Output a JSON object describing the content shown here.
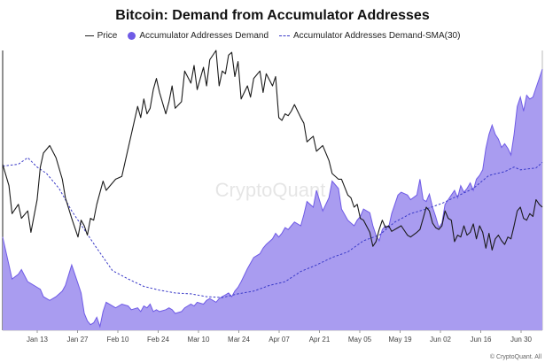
{
  "chart_data": {
    "type": "area",
    "title": "Bitcoin: Demand from Accumulator Addresses",
    "xlabel": "",
    "ylabel": "",
    "legend_position": "top",
    "grid": false,
    "watermark": "CryptoQuant",
    "footer": "© CryptoQuant. All",
    "x_tick_labels": [
      "Jan 13",
      "Jan 27",
      "Feb 10",
      "Feb 24",
      "Mar 10",
      "Mar 24",
      "Apr 07",
      "Apr 21",
      "May 05",
      "May 19",
      "Jun 02",
      "Jun 16",
      "Jun 30"
    ],
    "colors": {
      "price": "#1a1a1a",
      "demand_fill": "#a99cf0",
      "demand_line": "#6f5be6",
      "sma": "#3a3ac8"
    },
    "series": [
      {
        "name": "Price",
        "type": "line",
        "values": [
          [
            0,
            178
          ],
          [
            2,
            155
          ],
          [
            3,
            125
          ],
          [
            5,
            135
          ],
          [
            6,
            120
          ],
          [
            8,
            128
          ],
          [
            9,
            105
          ],
          [
            11,
            140
          ],
          [
            12,
            175
          ],
          [
            13,
            190
          ],
          [
            15,
            198
          ],
          [
            17,
            185
          ],
          [
            19,
            162
          ],
          [
            20,
            142
          ],
          [
            22,
            120
          ],
          [
            24,
            100
          ],
          [
            25,
            118
          ],
          [
            26,
            112
          ],
          [
            27,
            102
          ],
          [
            28,
            120
          ],
          [
            29,
            118
          ],
          [
            30,
            135
          ],
          [
            32,
            160
          ],
          [
            33,
            150
          ],
          [
            35,
            158
          ],
          [
            36,
            162
          ],
          [
            38,
            165
          ],
          [
            40,
            195
          ],
          [
            41,
            210
          ],
          [
            43,
            240
          ],
          [
            44,
            228
          ],
          [
            45,
            248
          ],
          [
            46,
            232
          ],
          [
            47,
            238
          ],
          [
            48,
            258
          ],
          [
            49,
            270
          ],
          [
            50,
            255
          ],
          [
            52,
            232
          ],
          [
            53,
            245
          ],
          [
            54,
            262
          ],
          [
            55,
            238
          ],
          [
            57,
            245
          ],
          [
            58,
            278
          ],
          [
            60,
            265
          ],
          [
            61,
            284
          ],
          [
            62,
            258
          ],
          [
            64,
            282
          ],
          [
            65,
            262
          ],
          [
            66,
            290
          ],
          [
            68,
            300
          ],
          [
            69,
            262
          ],
          [
            70,
            278
          ],
          [
            71,
            275
          ],
          [
            72,
            295
          ],
          [
            73,
            298
          ],
          [
            74,
            272
          ],
          [
            75,
            288
          ],
          [
            76,
            248
          ],
          [
            78,
            262
          ],
          [
            79,
            250
          ],
          [
            80,
            270
          ],
          [
            82,
            278
          ],
          [
            83,
            255
          ],
          [
            84,
            275
          ],
          [
            86,
            262
          ],
          [
            87,
            272
          ],
          [
            88,
            228
          ],
          [
            89,
            225
          ],
          [
            90,
            232
          ],
          [
            91,
            230
          ],
          [
            92,
            235
          ],
          [
            93,
            242
          ],
          [
            95,
            228
          ],
          [
            96,
            222
          ],
          [
            97,
            202
          ],
          [
            99,
            208
          ],
          [
            100,
            192
          ],
          [
            102,
            198
          ],
          [
            104,
            182
          ],
          [
            105,
            168
          ],
          [
            107,
            162
          ],
          [
            108,
            162
          ],
          [
            110,
            145
          ],
          [
            111,
            142
          ],
          [
            112,
            132
          ],
          [
            113,
            135
          ],
          [
            114,
            120
          ],
          [
            115,
            118
          ],
          [
            117,
            105
          ],
          [
            118,
            90
          ],
          [
            119,
            95
          ],
          [
            120,
            108
          ],
          [
            121,
            118
          ],
          [
            122,
            110
          ],
          [
            123,
            112
          ],
          [
            124,
            106
          ],
          [
            126,
            110
          ],
          [
            127,
            112
          ],
          [
            129,
            102
          ],
          [
            130,
            100
          ],
          [
            132,
            105
          ],
          [
            133,
            108
          ],
          [
            134,
            120
          ],
          [
            135,
            132
          ],
          [
            136,
            128
          ],
          [
            137,
            115
          ],
          [
            138,
            110
          ],
          [
            139,
            108
          ],
          [
            140,
            112
          ],
          [
            141,
            128
          ],
          [
            142,
            120
          ],
          [
            143,
            118
          ],
          [
            144,
            95
          ],
          [
            145,
            102
          ],
          [
            146,
            100
          ],
          [
            147,
            112
          ],
          [
            148,
            102
          ],
          [
            149,
            105
          ],
          [
            150,
            114
          ],
          [
            151,
            98
          ],
          [
            152,
            112
          ],
          [
            153,
            105
          ],
          [
            154,
            88
          ],
          [
            155,
            104
          ],
          [
            156,
            86
          ],
          [
            157,
            98
          ],
          [
            158,
            102
          ],
          [
            159,
            96
          ],
          [
            160,
            92
          ],
          [
            161,
            100
          ],
          [
            162,
            98
          ],
          [
            163,
            112
          ],
          [
            164,
            128
          ],
          [
            165,
            132
          ],
          [
            166,
            120
          ],
          [
            167,
            118
          ],
          [
            168,
            125
          ],
          [
            169,
            122
          ],
          [
            170,
            140
          ],
          [
            171,
            135
          ],
          [
            172,
            132
          ]
        ]
      },
      {
        "name": "Accumulator Addresses Demand",
        "type": "area",
        "values": [
          [
            0,
            100
          ],
          [
            2,
            70
          ],
          [
            3,
            55
          ],
          [
            5,
            60
          ],
          [
            6,
            65
          ],
          [
            8,
            52
          ],
          [
            9,
            50
          ],
          [
            11,
            46
          ],
          [
            12,
            44
          ],
          [
            13,
            36
          ],
          [
            15,
            32
          ],
          [
            17,
            36
          ],
          [
            19,
            42
          ],
          [
            20,
            48
          ],
          [
            22,
            70
          ],
          [
            24,
            50
          ],
          [
            25,
            40
          ],
          [
            26,
            18
          ],
          [
            27,
            10
          ],
          [
            28,
            6
          ],
          [
            29,
            8
          ],
          [
            30,
            14
          ],
          [
            31,
            4
          ],
          [
            32,
            20
          ],
          [
            33,
            30
          ],
          [
            35,
            26
          ],
          [
            36,
            24
          ],
          [
            38,
            28
          ],
          [
            40,
            26
          ],
          [
            41,
            22
          ],
          [
            43,
            24
          ],
          [
            44,
            20
          ],
          [
            45,
            26
          ],
          [
            46,
            24
          ],
          [
            47,
            28
          ],
          [
            48,
            20
          ],
          [
            49,
            22
          ],
          [
            50,
            20
          ],
          [
            52,
            22
          ],
          [
            53,
            24
          ],
          [
            54,
            22
          ],
          [
            55,
            18
          ],
          [
            57,
            20
          ],
          [
            58,
            24
          ],
          [
            60,
            28
          ],
          [
            61,
            26
          ],
          [
            62,
            30
          ],
          [
            64,
            28
          ],
          [
            65,
            32
          ],
          [
            66,
            34
          ],
          [
            68,
            30
          ],
          [
            69,
            34
          ],
          [
            70,
            36
          ],
          [
            71,
            38
          ],
          [
            72,
            40
          ],
          [
            73,
            36
          ],
          [
            74,
            42
          ],
          [
            75,
            46
          ],
          [
            76,
            52
          ],
          [
            78,
            66
          ],
          [
            79,
            72
          ],
          [
            80,
            78
          ],
          [
            82,
            82
          ],
          [
            83,
            88
          ],
          [
            84,
            92
          ],
          [
            86,
            98
          ],
          [
            87,
            104
          ],
          [
            88,
            100
          ],
          [
            89,
            104
          ],
          [
            90,
            110
          ],
          [
            91,
            108
          ],
          [
            92,
            112
          ],
          [
            93,
            116
          ],
          [
            95,
            112
          ],
          [
            96,
            124
          ],
          [
            97,
            138
          ],
          [
            99,
            132
          ],
          [
            100,
            150
          ],
          [
            102,
            128
          ],
          [
            104,
            142
          ],
          [
            105,
            160
          ],
          [
            107,
            152
          ],
          [
            108,
            130
          ],
          [
            110,
            118
          ],
          [
            111,
            115
          ],
          [
            112,
            112
          ],
          [
            113,
            118
          ],
          [
            114,
            122
          ],
          [
            115,
            130
          ],
          [
            117,
            126
          ],
          [
            118,
            112
          ],
          [
            119,
            102
          ],
          [
            120,
            96
          ],
          [
            121,
            108
          ],
          [
            122,
            112
          ],
          [
            123,
            110
          ],
          [
            124,
            125
          ],
          [
            126,
            145
          ],
          [
            127,
            148
          ],
          [
            129,
            145
          ],
          [
            130,
            140
          ],
          [
            132,
            145
          ],
          [
            133,
            162
          ],
          [
            134,
            140
          ],
          [
            135,
            138
          ],
          [
            136,
            146
          ],
          [
            137,
            132
          ],
          [
            138,
            122
          ],
          [
            139,
            110
          ],
          [
            140,
            115
          ],
          [
            141,
            135
          ],
          [
            142,
            140
          ],
          [
            143,
            145
          ],
          [
            144,
            150
          ],
          [
            145,
            142
          ],
          [
            146,
            155
          ],
          [
            147,
            148
          ],
          [
            148,
            152
          ],
          [
            149,
            158
          ],
          [
            150,
            150
          ],
          [
            151,
            162
          ],
          [
            152,
            166
          ],
          [
            153,
            172
          ],
          [
            154,
            195
          ],
          [
            155,
            210
          ],
          [
            156,
            220
          ],
          [
            157,
            210
          ],
          [
            158,
            205
          ],
          [
            159,
            196
          ],
          [
            160,
            200
          ],
          [
            161,
            195
          ],
          [
            162,
            188
          ],
          [
            163,
            210
          ],
          [
            164,
            240
          ],
          [
            165,
            250
          ],
          [
            166,
            235
          ],
          [
            167,
            252
          ],
          [
            168,
            248
          ],
          [
            169,
            250
          ],
          [
            170,
            260
          ],
          [
            171,
            270
          ],
          [
            172,
            280
          ]
        ]
      },
      {
        "name": "Accumulator Addresses Demand-SMA(30)",
        "type": "line",
        "values": [
          [
            0,
            176
          ],
          [
            5,
            178
          ],
          [
            8,
            185
          ],
          [
            11,
            175
          ],
          [
            14,
            168
          ],
          [
            18,
            152
          ],
          [
            22,
            128
          ],
          [
            26,
            108
          ],
          [
            30,
            88
          ],
          [
            35,
            64
          ],
          [
            40,
            55
          ],
          [
            45,
            47
          ],
          [
            50,
            43
          ],
          [
            55,
            40
          ],
          [
            60,
            39
          ],
          [
            65,
            36
          ],
          [
            70,
            35
          ],
          [
            75,
            39
          ],
          [
            80,
            42
          ],
          [
            85,
            48
          ],
          [
            90,
            52
          ],
          [
            95,
            63
          ],
          [
            100,
            70
          ],
          [
            105,
            78
          ],
          [
            110,
            84
          ],
          [
            115,
            96
          ],
          [
            120,
            102
          ],
          [
            125,
            116
          ],
          [
            130,
            125
          ],
          [
            135,
            130
          ],
          [
            140,
            136
          ],
          [
            145,
            144
          ],
          [
            150,
            152
          ],
          [
            155,
            166
          ],
          [
            160,
            170
          ],
          [
            163,
            175
          ],
          [
            165,
            172
          ],
          [
            170,
            174
          ],
          [
            172,
            180
          ]
        ]
      }
    ],
    "x_domain": [
      0,
      172
    ],
    "ylim": [
      0,
      300
    ]
  }
}
